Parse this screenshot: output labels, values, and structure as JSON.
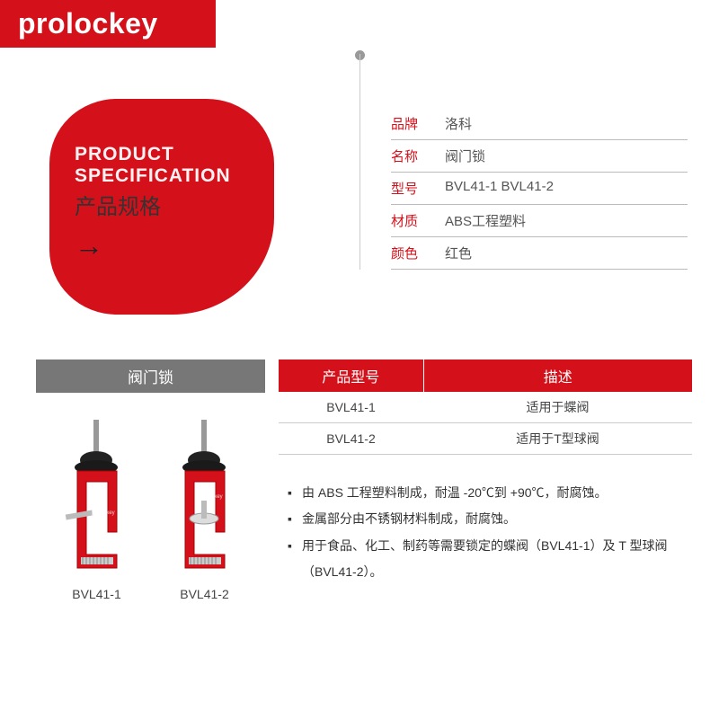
{
  "brand": {
    "logo": "prolockey",
    "color": "#d4111b"
  },
  "badge": {
    "en_line1": "PRODUCT",
    "en_line2": "SPECIFICATION",
    "cn": "产品规格",
    "arrow": "→"
  },
  "specs": {
    "rows": [
      {
        "label": "品牌",
        "value": "洛科"
      },
      {
        "label": "名称",
        "value": "阀门锁"
      },
      {
        "label": "型号",
        "value": "BVL41-1  BVL41-2"
      },
      {
        "label": "材质",
        "value": "ABS工程塑料"
      },
      {
        "label": "颜色",
        "value": "红色"
      }
    ]
  },
  "left_header": "阀门锁",
  "products": [
    {
      "label": "BVL41-1"
    },
    {
      "label": "BVL41-2"
    }
  ],
  "model_table": {
    "headers": [
      "产品型号",
      "描述"
    ],
    "rows": [
      [
        "BVL41-1",
        "适用于蝶阀"
      ],
      [
        "BVL41-2",
        "适用于T型球阀"
      ]
    ]
  },
  "bullets": [
    "由 ABS 工程塑料制成，耐温 -20℃到 +90℃，耐腐蚀。",
    "金属部分由不锈钢材料制成，耐腐蚀。",
    "用于食品、化工、制药等需要锁定的蝶阀（BVL41-1）及 T 型球阀（BVL41-2）。"
  ],
  "colors": {
    "primary": "#d4111b",
    "gray_header": "#777777",
    "text": "#444444",
    "border": "#bbbbbb"
  }
}
